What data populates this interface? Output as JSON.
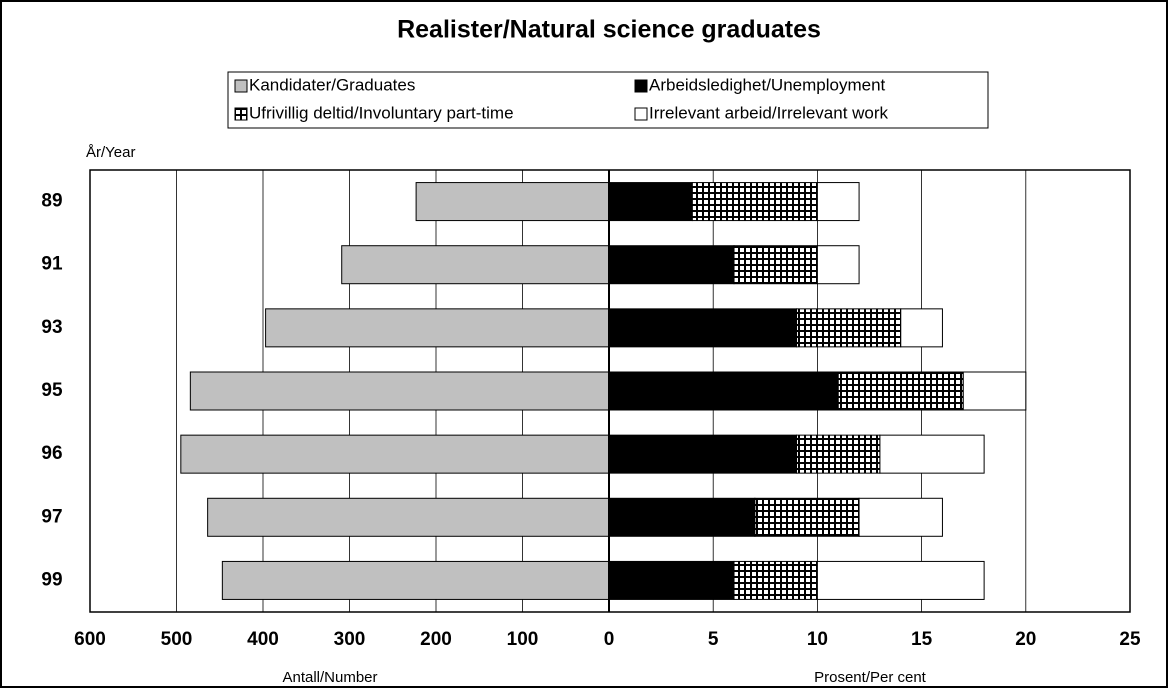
{
  "chart_data": {
    "type": "butterfly",
    "title": "Realister/Natural science graduates",
    "y_label": "År/Year",
    "x_label": "Antall/Number",
    "x2_label": "Prosent/Per cent",
    "categories": [
      "89",
      "91",
      "93",
      "95",
      "96",
      "97",
      "99"
    ],
    "series": [
      {
        "name": "Kandidater/Graduates",
        "color": "#c0c0c0",
        "axis": "x",
        "values": [
          223,
          309,
          397,
          484,
          495,
          464,
          447
        ]
      },
      {
        "name": "Arbeidsledighet/Unemployment",
        "color": "#000000",
        "axis": "x2",
        "values": [
          4,
          6,
          9,
          11,
          9,
          7,
          6
        ]
      },
      {
        "name": "Ufrivillig deltid/Involuntary part-time",
        "color": "#000000",
        "pattern": "grid",
        "axis": "x2",
        "values": [
          6,
          4,
          5,
          6,
          4,
          5,
          4
        ]
      },
      {
        "name": "Irrelevant arbeid/Irrelevant work",
        "color": "#ffffff",
        "axis": "x2",
        "values": [
          2,
          2,
          2,
          3,
          5,
          4,
          8
        ]
      }
    ],
    "xlim": [
      600,
      0
    ],
    "xticks": [
      600,
      500,
      400,
      300,
      200,
      100,
      0
    ],
    "x2lim": [
      0,
      25
    ],
    "x2ticks": [
      5,
      10,
      15,
      20,
      25
    ],
    "grid": true
  }
}
